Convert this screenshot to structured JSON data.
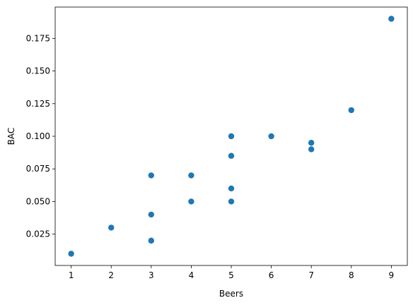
{
  "chart_data": {
    "type": "scatter",
    "xlabel": "Beers",
    "ylabel": "BAC",
    "x": [
      1,
      2,
      3,
      3,
      3,
      4,
      4,
      5,
      5,
      5,
      5,
      6,
      7,
      7,
      8,
      9
    ],
    "y": [
      0.01,
      0.03,
      0.07,
      0.04,
      0.02,
      0.07,
      0.05,
      0.1,
      0.085,
      0.06,
      0.05,
      0.1,
      0.095,
      0.09,
      0.12,
      0.19
    ],
    "color": "#1f77b4",
    "xlim": [
      0.6,
      9.4
    ],
    "xticks": [
      1,
      2,
      3,
      4,
      5,
      6,
      7,
      8,
      9
    ],
    "ylim": [
      0.001,
      0.199
    ],
    "yticks": [
      0.025,
      {
        "value": 0.05,
        "label": "0.050"
      },
      0.075,
      {
        "value": 0.1,
        "label": "0.100"
      },
      0.125,
      {
        "value": 0.15,
        "label": "0.150"
      },
      0.175
    ],
    "grid": false
  }
}
